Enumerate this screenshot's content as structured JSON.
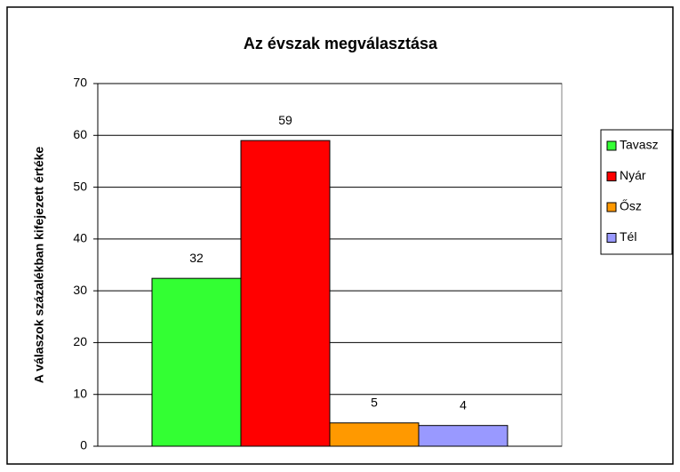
{
  "chart_data": {
    "type": "bar",
    "title": "Az évszak megválasztása",
    "y_label": "A válaszok százalékban kifejezett értéke",
    "categories": [
      null
    ],
    "series": [
      {
        "name": "Tavasz",
        "color": "#33ff33",
        "values": [
          32.4
        ],
        "value_labels": [
          "32"
        ]
      },
      {
        "name": "Nyár",
        "color": "#ff0000",
        "values": [
          59
        ],
        "value_labels": [
          "59"
        ]
      },
      {
        "name": "Ősz",
        "color": "#ff9900",
        "values": [
          4.5
        ],
        "value_labels": [
          "5"
        ]
      },
      {
        "name": "Tél",
        "color": "#9999ff",
        "values": [
          4
        ],
        "value_labels": [
          "4"
        ]
      }
    ],
    "ylim": [
      0,
      70
    ],
    "yticks": [
      0,
      10,
      20,
      30,
      40,
      50,
      60,
      70
    ],
    "grid": true,
    "legend": "right"
  }
}
